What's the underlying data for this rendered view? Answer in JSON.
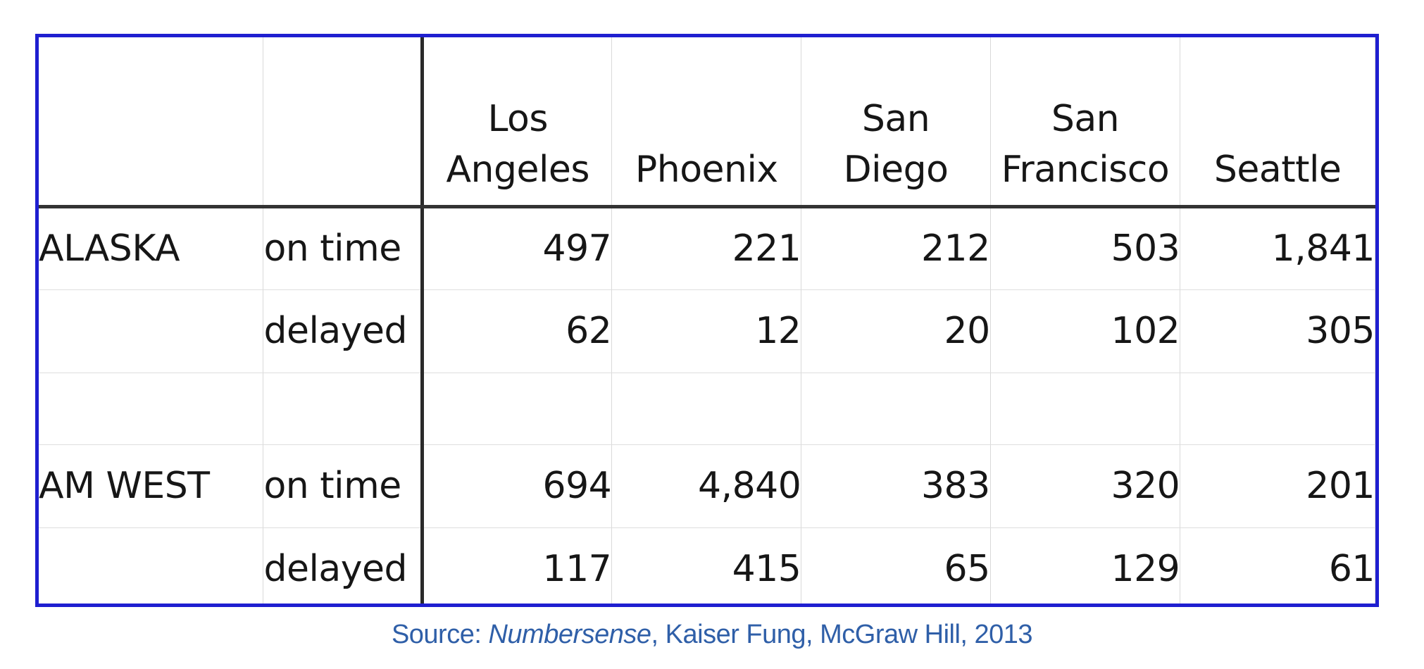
{
  "table": {
    "cities": [
      {
        "line1": "Los",
        "line2": "Angeles"
      },
      {
        "line1": "",
        "line2": "Phoenix"
      },
      {
        "line1": "San",
        "line2": "Diego"
      },
      {
        "line1": "San",
        "line2": "Francisco"
      },
      {
        "line1": "",
        "line2": "Seattle"
      }
    ],
    "rows": [
      {
        "airline": "ALASKA",
        "status": "on time",
        "values": [
          "497",
          "221",
          "212",
          "503",
          "1,841"
        ]
      },
      {
        "airline": "",
        "status": "delayed",
        "values": [
          "62",
          "12",
          "20",
          "102",
          "305"
        ]
      },
      {
        "airline": "AM WEST",
        "status": "on time",
        "values": [
          "694",
          "4,840",
          "383",
          "320",
          "201"
        ]
      },
      {
        "airline": "",
        "status": "delayed",
        "values": [
          "117",
          "415",
          "65",
          "129",
          "61"
        ]
      }
    ]
  },
  "source": {
    "prefix": "Source:  ",
    "title": "Numbersense",
    "rest": ", Kaiser Fung, McGraw Hill, 2013"
  },
  "colors": {
    "frame_border": "#1f1fd0",
    "source_text": "#2f5fa8"
  }
}
